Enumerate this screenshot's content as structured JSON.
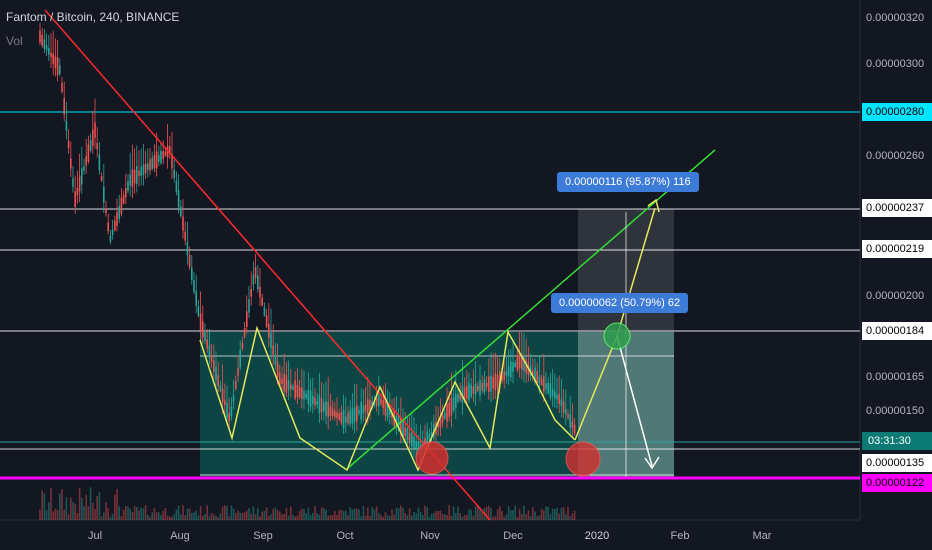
{
  "header": {
    "symbol": "Fantom / Bitcoin, 240, BINANCE",
    "volume_label": "Vol"
  },
  "price_axis": {
    "ticks": [
      "0.00000320",
      "0.00000300",
      "0.00000260",
      "0.00000200",
      "0.00000165",
      "0.00000150"
    ],
    "highlighted": [
      {
        "label": "0.00000280",
        "bg": "#00e5ff",
        "fg": "#000000"
      },
      {
        "label": "0.00000237",
        "bg": "#ffffff",
        "fg": "#000000"
      },
      {
        "label": "0.00000219",
        "bg": "#ffffff",
        "fg": "#000000"
      },
      {
        "label": "0.00000184",
        "bg": "#ffffff",
        "fg": "#000000"
      },
      {
        "label": "0.00000135",
        "bg": "#ffffff",
        "fg": "#000000"
      },
      {
        "label": "0.00000122",
        "bg": "#ff00ff",
        "fg": "#000000"
      }
    ],
    "countdown": "03:31:30"
  },
  "time_axis": {
    "labels": [
      "Jul",
      "Aug",
      "Sep",
      "Oct",
      "Nov",
      "Dec",
      "2020",
      "Feb",
      "Mar"
    ]
  },
  "measurements": [
    {
      "label": "0.00000116 (95.87%) 116"
    },
    {
      "label": "0.00000062 (50.79%) 62"
    }
  ],
  "colors": {
    "background": "#131722",
    "up": "#26a69a",
    "down": "#ef5350",
    "downtrend": "#ff2b2b",
    "uptrend": "#33dd33",
    "zigzag": "#e4e85a",
    "cyan_line": "#00e5ff",
    "magenta_line": "#ff00ff",
    "range_box": "#0d4d4a"
  }
}
